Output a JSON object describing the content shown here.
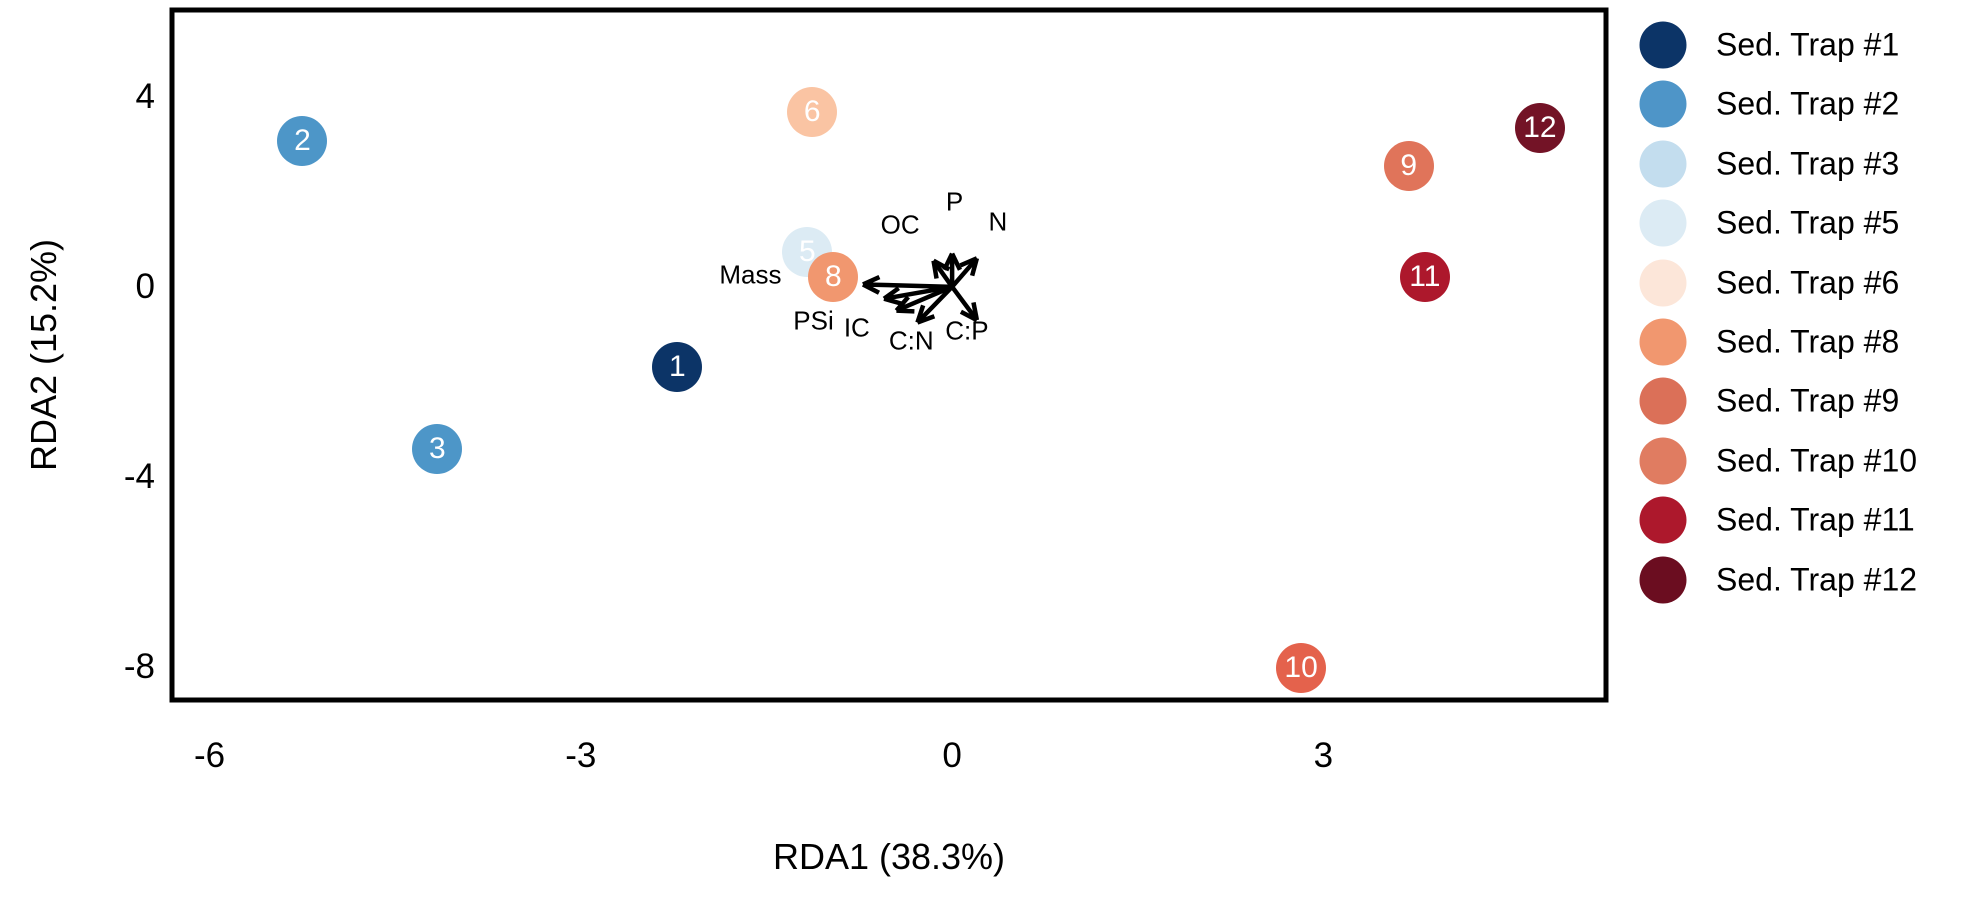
{
  "chart_data": {
    "type": "scatter",
    "title": "",
    "xlabel": "RDA1 (38.3%)",
    "ylabel": "RDA2 (15.2%)",
    "xlim": [
      -6.32,
      5.3
    ],
    "ylim": [
      -8.74,
      5.87
    ],
    "x_ticks": [
      -6,
      -3,
      0,
      3
    ],
    "y_ticks": [
      4,
      0,
      -4,
      -8
    ],
    "grid": false,
    "panel_border_color": "#000000",
    "background_color": "#ffffff",
    "legend_position": "right",
    "points": [
      {
        "label": "1",
        "legend_label": "Sed. Trap #1",
        "x": -2.22,
        "y": -1.68,
        "point_color": "#0C3467",
        "legend_color": "#0C3467"
      },
      {
        "label": "2",
        "legend_label": "Sed. Trap #2",
        "x": -5.25,
        "y": 3.07,
        "point_color": "#4D96C8",
        "legend_color": "#4E95C8"
      },
      {
        "label": "3",
        "legend_label": "Sed. Trap #3",
        "x": -4.16,
        "y": -3.41,
        "point_color": "#4D96C8",
        "legend_color": "#C3DDEE"
      },
      {
        "label": "5",
        "legend_label": "Sed. Trap #5",
        "x": -1.17,
        "y": 0.74,
        "point_color": "#DCEBF4",
        "legend_color": "#DCEBF4"
      },
      {
        "label": "6",
        "legend_label": "Sed. Trap #6",
        "x": -1.13,
        "y": 3.68,
        "point_color": "#FAC4A3",
        "legend_color": "#FCE6D9"
      },
      {
        "label": "8",
        "legend_label": "Sed. Trap #8",
        "x": -0.96,
        "y": 0.21,
        "point_color": "#F1976F",
        "legend_color": "#F1976F"
      },
      {
        "label": "9",
        "legend_label": "Sed. Trap #9",
        "x": 3.69,
        "y": 2.55,
        "point_color": "#E0745A",
        "legend_color": "#DB7058"
      },
      {
        "label": "10",
        "legend_label": "Sed. Trap #10",
        "x": 2.82,
        "y": -8.02,
        "point_color": "#E4624C",
        "legend_color": "#E07C61"
      },
      {
        "label": "11",
        "legend_label": "Sed. Trap #11",
        "x": 3.82,
        "y": 0.21,
        "point_color": "#AD182C",
        "legend_color": "#AD182C"
      },
      {
        "label": "12",
        "legend_label": "Sed. Trap #12",
        "x": 4.75,
        "y": 3.35,
        "point_color": "#731326",
        "legend_color": "#6B0D20"
      }
    ],
    "env_vectors": {
      "color": "#000000",
      "origin": {
        "x": 0,
        "y": 0
      },
      "items": [
        {
          "label": "Mass",
          "x": -0.72,
          "y": 0.05,
          "label_x": -1.63,
          "label_y": 0.25
        },
        {
          "label": "PSi",
          "x": -0.55,
          "y": -0.25,
          "label_x": -1.12,
          "label_y": -0.72
        },
        {
          "label": "IC",
          "x": -0.45,
          "y": -0.5,
          "label_x": -0.77,
          "label_y": -0.87
        },
        {
          "label": "C:N",
          "x": -0.28,
          "y": -0.75,
          "label_x": -0.33,
          "label_y": -1.14
        },
        {
          "label": "C:P",
          "x": 0.2,
          "y": -0.7,
          "label_x": 0.12,
          "label_y": -0.93
        },
        {
          "label": "OC",
          "x": -0.15,
          "y": 0.55,
          "label_x": -0.42,
          "label_y": 1.3
        },
        {
          "label": "P",
          "x": 0.0,
          "y": 0.7,
          "label_x": 0.02,
          "label_y": 1.79
        },
        {
          "label": "N",
          "x": 0.2,
          "y": 0.6,
          "label_x": 0.37,
          "label_y": 1.37
        }
      ]
    }
  }
}
